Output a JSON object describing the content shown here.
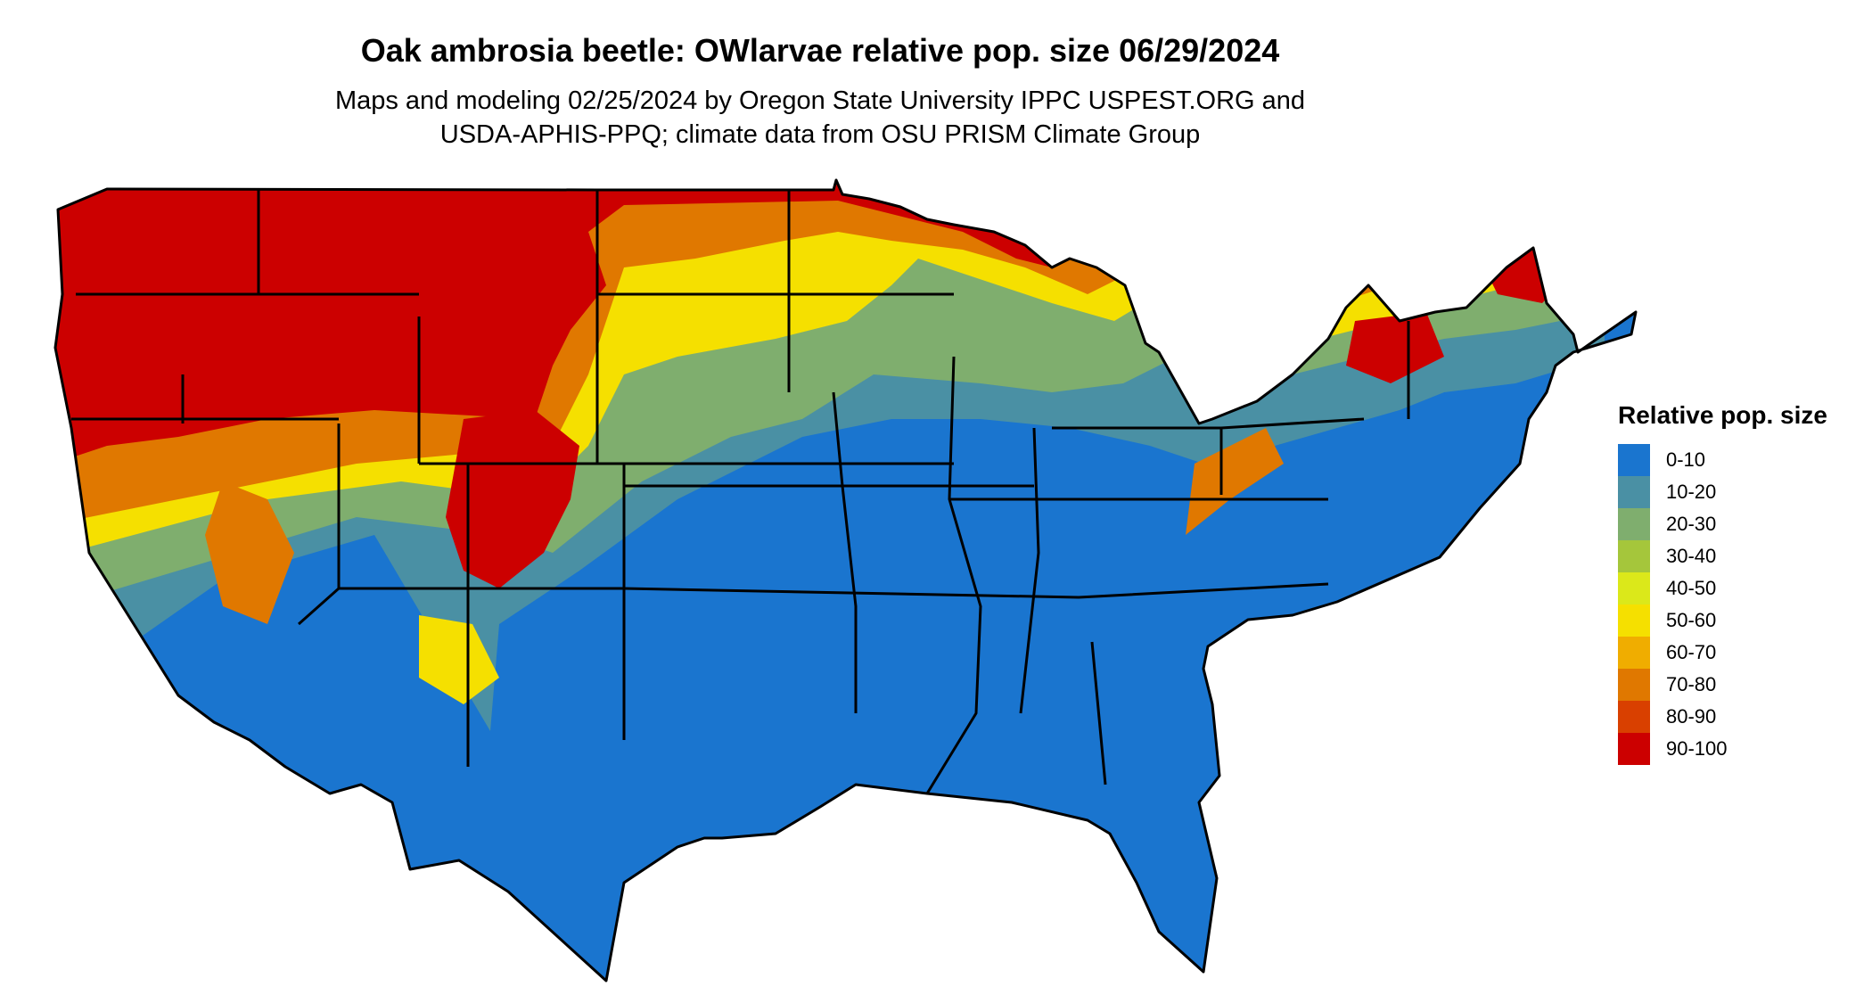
{
  "map": {
    "title": "Oak ambrosia beetle: OWlarvae relative pop. size 06/29/2024",
    "subtitle_lines": [
      "Maps and modeling 02/25/2024 by Oregon State University IPPC USPEST.ORG and",
      "USDA-APHIS-PPQ; climate data from OSU PRISM Climate Group"
    ],
    "region": "contiguous United States",
    "base_color": "#1a75cf",
    "boundary_color": "#000000"
  },
  "legend": {
    "title": "Relative pop. size",
    "entries": [
      {
        "label": "0-10",
        "color": "#1a75cf"
      },
      {
        "label": "10-20",
        "color": "#4a90a4"
      },
      {
        "label": "20-30",
        "color": "#7fae6e"
      },
      {
        "label": "30-40",
        "color": "#a5c63b"
      },
      {
        "label": "40-50",
        "color": "#dbe81a"
      },
      {
        "label": "50-60",
        "color": "#f5e000"
      },
      {
        "label": "60-70",
        "color": "#f0ad00"
      },
      {
        "label": "70-80",
        "color": "#e07800"
      },
      {
        "label": "80-90",
        "color": "#d94000"
      },
      {
        "label": "90-100",
        "color": "#cc0000"
      }
    ]
  }
}
